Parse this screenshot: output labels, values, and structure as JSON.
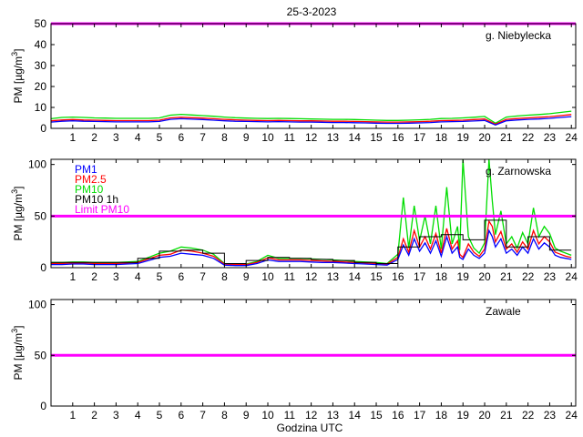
{
  "title": "25-3-2023",
  "xlabel": "Godzina UTC",
  "ylabel": "PM [µg/m",
  "ylabel_sup": "3",
  "ylabel_close": "]",
  "colors": {
    "PM1": "#0000ff",
    "PM2.5": "#ff0000",
    "PM10": "#00dd00",
    "PM10 1h": "#000000",
    "Limit PM10": "#ff00ff"
  },
  "chart_data": [
    {
      "type": "line",
      "station": "g. Niebylecka",
      "xlim": [
        0,
        24.2
      ],
      "ylim": [
        0,
        50
      ],
      "xticks": [
        1,
        2,
        3,
        4,
        5,
        6,
        7,
        8,
        9,
        10,
        11,
        12,
        13,
        14,
        15,
        16,
        17,
        18,
        19,
        20,
        21,
        22,
        23,
        24
      ],
      "yticks": [
        0,
        10,
        20,
        30,
        40,
        50
      ],
      "grid": false,
      "legend": [],
      "limit_pm10": 50,
      "hours": [
        0,
        0.5,
        1,
        1.5,
        2,
        2.5,
        3,
        3.5,
        4,
        4.5,
        5,
        5.5,
        6,
        6.5,
        7,
        7.5,
        8,
        8.5,
        9,
        9.5,
        10,
        10.5,
        11,
        11.5,
        12,
        12.5,
        13,
        13.5,
        14,
        14.5,
        15,
        15.5,
        16,
        16.5,
        17,
        17.5,
        18,
        18.5,
        19,
        19.5,
        20,
        20.5,
        21,
        21.5,
        22,
        22.5,
        23,
        23.5,
        24
      ],
      "series": [
        {
          "name": "PM1",
          "values": [
            3,
            3.4,
            3.6,
            3.4,
            3.3,
            3.2,
            3.1,
            3.1,
            3.1,
            3.1,
            3.3,
            4.3,
            4.6,
            4.4,
            4.2,
            3.9,
            3.6,
            3.4,
            3.3,
            3.2,
            3.1,
            3.2,
            3.1,
            3,
            3,
            2.9,
            2.8,
            2.8,
            2.7,
            2.6,
            2.5,
            2.4,
            2.4,
            2.5,
            2.6,
            2.8,
            3.1,
            3.2,
            3.3,
            3.5,
            3.8,
            1.6,
            3.6,
            4,
            4.3,
            4.5,
            4.8,
            5.2,
            5.6
          ]
        },
        {
          "name": "PM2.5",
          "values": [
            3.6,
            4,
            4.2,
            4,
            3.9,
            3.8,
            3.7,
            3.7,
            3.7,
            3.7,
            3.9,
            5,
            5.3,
            5.1,
            4.9,
            4.6,
            4.3,
            4.1,
            3.9,
            3.8,
            3.7,
            3.8,
            3.7,
            3.6,
            3.6,
            3.5,
            3.4,
            3.4,
            3.3,
            3.2,
            3.1,
            3,
            3,
            3.1,
            3.2,
            3.4,
            3.7,
            3.8,
            3.9,
            4.2,
            4.5,
            2,
            4.3,
            4.7,
            5,
            5.3,
            5.6,
            6.1,
            6.6
          ]
        },
        {
          "name": "PM10",
          "values": [
            4.6,
            5.2,
            5.4,
            5.2,
            5,
            4.9,
            4.8,
            4.8,
            4.8,
            4.8,
            5,
            6.3,
            6.7,
            6.4,
            6.1,
            5.8,
            5.4,
            5.1,
            4.9,
            4.8,
            4.7,
            4.8,
            4.7,
            4.6,
            4.5,
            4.4,
            4.3,
            4.3,
            4.2,
            4.1,
            3.9,
            3.8,
            3.8,
            3.9,
            4.1,
            4.3,
            4.7,
            4.8,
            5,
            5.3,
            5.7,
            2.5,
            5.4,
            5.9,
            6.3,
            6.6,
            7,
            7.6,
            8.2
          ]
        }
      ],
      "pm10_1h": []
    },
    {
      "type": "line",
      "station": "g. Zarnowska",
      "xlim": [
        0,
        24.2
      ],
      "ylim": [
        0,
        105
      ],
      "xticks": [
        1,
        2,
        3,
        4,
        5,
        6,
        7,
        8,
        9,
        10,
        11,
        12,
        13,
        14,
        15,
        16,
        17,
        18,
        19,
        20,
        21,
        22,
        23,
        24
      ],
      "yticks": [
        0,
        50,
        100
      ],
      "grid": false,
      "legend": [
        "PM1",
        "PM2.5",
        "PM10",
        "PM10 1h",
        "Limit PM10"
      ],
      "limit_pm10": 50,
      "hours": [
        0,
        0.5,
        1,
        1.5,
        2,
        2.5,
        3,
        3.5,
        4,
        4.5,
        5,
        5.5,
        6,
        6.5,
        7,
        7.5,
        8,
        8.5,
        9,
        9.5,
        10,
        10.5,
        11,
        11.5,
        12,
        12.5,
        13,
        13.5,
        14,
        14.5,
        15,
        15.5,
        16,
        16.25,
        16.5,
        16.75,
        17,
        17.25,
        17.5,
        17.75,
        18,
        18.25,
        18.5,
        18.75,
        18.85,
        19,
        19.25,
        19.5,
        19.75,
        20,
        20.2,
        20.35,
        20.5,
        20.75,
        21,
        21.25,
        21.5,
        21.75,
        22,
        22.25,
        22.5,
        22.75,
        23,
        23.25,
        23.5,
        23.75,
        24
      ],
      "series": [
        {
          "name": "PM1",
          "values": [
            3,
            3,
            3.5,
            3.5,
            3,
            3,
            3,
            3.5,
            4,
            7,
            10,
            11,
            14,
            13,
            12,
            9,
            2.5,
            2,
            2,
            4,
            7.5,
            6,
            6,
            6,
            5.5,
            5,
            5,
            4.5,
            4,
            3.5,
            3,
            2.5,
            8,
            22,
            12,
            28,
            16,
            24,
            14,
            26,
            11,
            30,
            14,
            20,
            10,
            8,
            18,
            12,
            9,
            14,
            36,
            30,
            20,
            28,
            14,
            18,
            12,
            20,
            14,
            28,
            18,
            24,
            20,
            12,
            10,
            9,
            8
          ]
        },
        {
          "name": "PM2.5",
          "values": [
            4,
            4,
            4.5,
            4.5,
            4,
            4,
            4,
            4.5,
            5,
            8.5,
            12,
            13,
            17,
            16,
            14,
            11,
            3.5,
            3,
            3,
            5,
            9.5,
            7.5,
            7.5,
            7.5,
            7,
            6.5,
            6,
            5.5,
            5,
            4.5,
            4,
            3.5,
            10,
            28,
            15,
            36,
            20,
            30,
            18,
            33,
            14,
            38,
            18,
            26,
            13,
            10,
            23,
            15,
            11,
            18,
            45,
            40,
            25,
            35,
            18,
            23,
            15,
            25,
            18,
            36,
            23,
            30,
            25,
            15,
            13,
            11,
            10
          ]
        },
        {
          "name": "PM10",
          "values": [
            5,
            5,
            5.5,
            5.5,
            5,
            5,
            5,
            5.5,
            6,
            10,
            14,
            16,
            20,
            19,
            17,
            13,
            4,
            3.5,
            3.5,
            6,
            12,
            9,
            9,
            9,
            8.5,
            8,
            7.5,
            7,
            6,
            5.5,
            5,
            4,
            13,
            68,
            19,
            60,
            26,
            50,
            23,
            60,
            18,
            78,
            23,
            40,
            17,
            105,
            30,
            19,
            14,
            24,
            105,
            65,
            32,
            55,
            23,
            30,
            19,
            34,
            23,
            58,
            30,
            40,
            33,
            19,
            16,
            14,
            12
          ]
        }
      ],
      "pm10_1h": [
        {
          "hour": 0,
          "value": 5
        },
        {
          "hour": 1,
          "value": 5
        },
        {
          "hour": 2,
          "value": 5
        },
        {
          "hour": 3,
          "value": 5
        },
        {
          "hour": 4,
          "value": 9
        },
        {
          "hour": 5,
          "value": 16
        },
        {
          "hour": 6,
          "value": 17
        },
        {
          "hour": 7,
          "value": 14
        },
        {
          "hour": 8,
          "value": 4
        },
        {
          "hour": 9,
          "value": 7
        },
        {
          "hour": 10,
          "value": 10
        },
        {
          "hour": 11,
          "value": 9
        },
        {
          "hour": 12,
          "value": 8
        },
        {
          "hour": 13,
          "value": 7
        },
        {
          "hour": 14,
          "value": 5
        },
        {
          "hour": 15,
          "value": 4
        },
        {
          "hour": 16,
          "value": 20
        },
        {
          "hour": 17,
          "value": 30
        },
        {
          "hour": 18,
          "value": 32
        },
        {
          "hour": 19,
          "value": 27
        },
        {
          "hour": 20,
          "value": 46
        },
        {
          "hour": 21,
          "value": 20
        },
        {
          "hour": 22,
          "value": 30
        },
        {
          "hour": 23,
          "value": 17
        }
      ]
    },
    {
      "type": "line",
      "station": "Zawale",
      "xlim": [
        0,
        24.2
      ],
      "ylim": [
        0,
        105
      ],
      "xticks": [
        1,
        2,
        3,
        4,
        5,
        6,
        7,
        8,
        9,
        10,
        11,
        12,
        13,
        14,
        15,
        16,
        17,
        18,
        19,
        20,
        21,
        22,
        23,
        24
      ],
      "yticks": [
        0,
        50,
        100
      ],
      "grid": false,
      "legend": [],
      "limit_pm10": 50,
      "hours": [],
      "series": [],
      "pm10_1h": []
    }
  ]
}
